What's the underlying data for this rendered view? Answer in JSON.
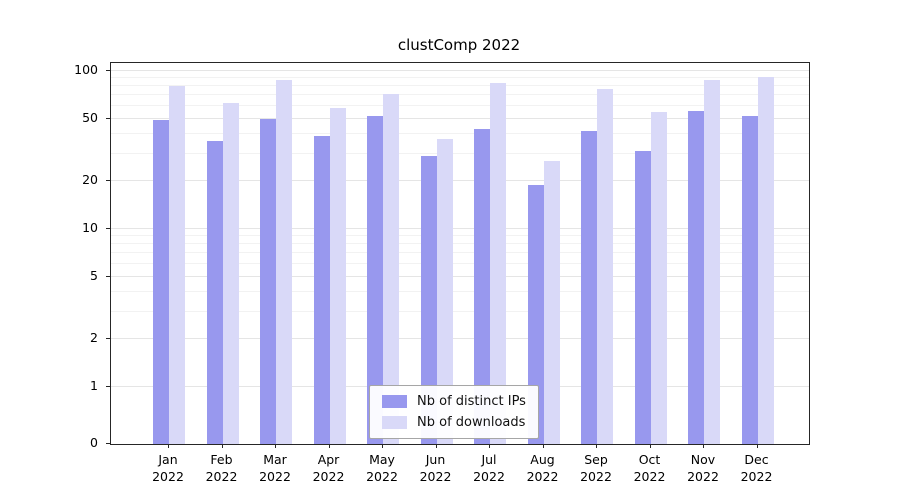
{
  "title": "clustComp 2022",
  "colors": {
    "ips": "#9898ee",
    "downloads": "#d9d9f8",
    "grid_major": "#e5e5e5",
    "grid_minor": "#f2f2f2",
    "axis": "#262626"
  },
  "chart_data": {
    "type": "bar",
    "title": "clustComp 2022",
    "xlabel": "",
    "ylabel": "",
    "yscale": "symlog",
    "grid": true,
    "legend_position": "lower center",
    "yticks": [
      0,
      1,
      2,
      5,
      10,
      20,
      50,
      100
    ],
    "ylim": [
      0,
      110
    ],
    "categories": [
      "Jan 2022",
      "Feb 2022",
      "Mar 2022",
      "Apr 2022",
      "May 2022",
      "Jun 2022",
      "Jul 2022",
      "Aug 2022",
      "Sep 2022",
      "Oct 2022",
      "Nov 2022",
      "Dec 2022"
    ],
    "series": [
      {
        "name": "Nb of distinct IPs",
        "color": "#9898ee",
        "values": [
          49,
          36,
          50,
          39,
          52,
          29,
          43,
          19,
          42,
          31,
          56,
          52
        ]
      },
      {
        "name": "Nb of downloads",
        "color": "#d9d9f8",
        "values": [
          80,
          63,
          88,
          58,
          72,
          37,
          84,
          27,
          77,
          55,
          88,
          91
        ]
      }
    ]
  }
}
